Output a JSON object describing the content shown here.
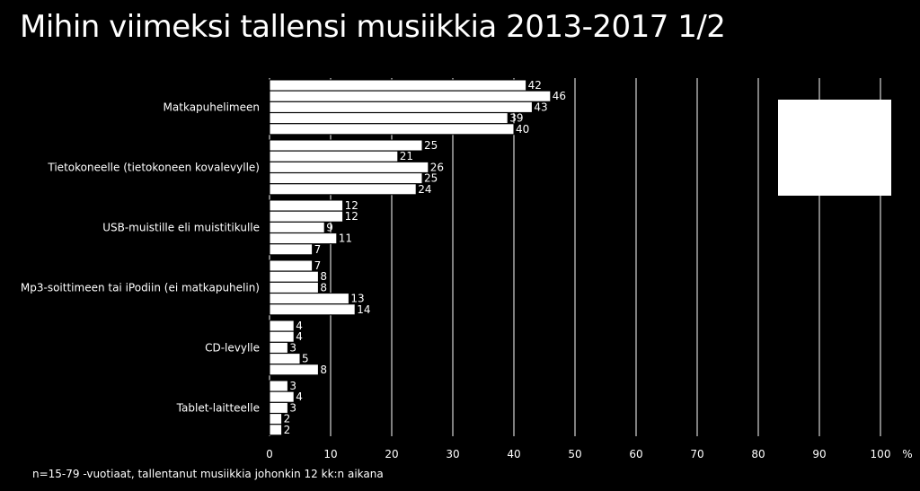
{
  "title": "Mihin viimeksi tallensi musiikkia 2013-2017  1/2",
  "footnote": "n=15-79 -vuotiaat, tallentanut musiikkia johonkin 12 kk:n aikana",
  "colors": {
    "background": "#000000",
    "bars": "#ffffff",
    "bar_outline": "#000000",
    "text": "#ffffff",
    "gridlines": "#ffffff"
  },
  "chart_data": {
    "type": "bar",
    "orientation": "horizontal",
    "title": "Mihin viimeksi tallensi musiikkia 2013-2017  1/2",
    "xlabel": "",
    "ylabel": "",
    "unit_label": "%",
    "xlim": [
      0,
      100
    ],
    "xticks": [
      0,
      10,
      20,
      30,
      40,
      50,
      60,
      70,
      80,
      90,
      100
    ],
    "grid": true,
    "legend": "top-right",
    "categories": [
      "Matkapuhelimeen",
      "Tietokoneelle (tietokoneen kovalevylle)",
      "USB-muistille eli muistitikulle",
      "Mp3-soittimeen tai iPodiin (ei matkapuhelin)",
      "CD-levylle",
      "Tablet-laitteelle"
    ],
    "series": [
      {
        "values": [
          42,
          25,
          12,
          7,
          4,
          3
        ]
      },
      {
        "values": [
          46,
          21,
          12,
          8,
          4,
          4
        ]
      },
      {
        "values": [
          43,
          26,
          9,
          8,
          3,
          3
        ]
      },
      {
        "values": [
          39,
          25,
          11,
          13,
          5,
          2
        ]
      },
      {
        "values": [
          40,
          24,
          7,
          14,
          8,
          2
        ]
      }
    ]
  }
}
